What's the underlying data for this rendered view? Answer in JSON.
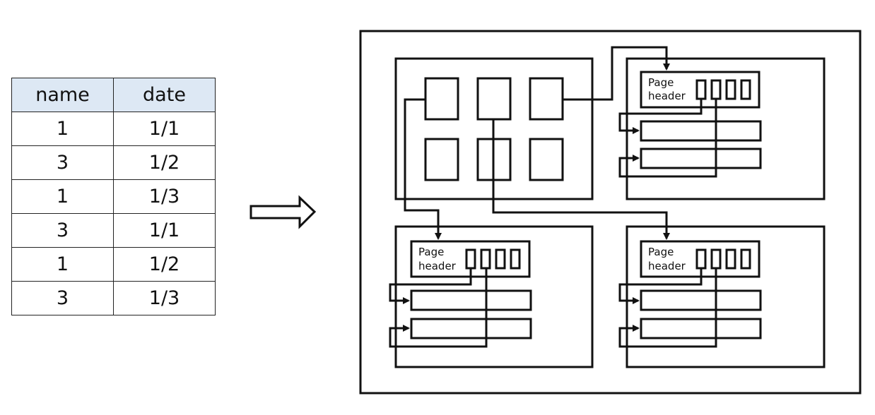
{
  "table": {
    "headers": [
      "name",
      "date"
    ],
    "rows": [
      [
        "1",
        "1/1"
      ],
      [
        "3",
        "1/2"
      ],
      [
        "1",
        "1/3"
      ],
      [
        "3",
        "1/1"
      ],
      [
        "1",
        "1/2"
      ],
      [
        "3",
        "1/3"
      ]
    ]
  },
  "page_header_label": {
    "line1": "Page",
    "line2": "header"
  },
  "colors": {
    "table_header_bg": "#dde8f4",
    "stroke": "#111111"
  }
}
